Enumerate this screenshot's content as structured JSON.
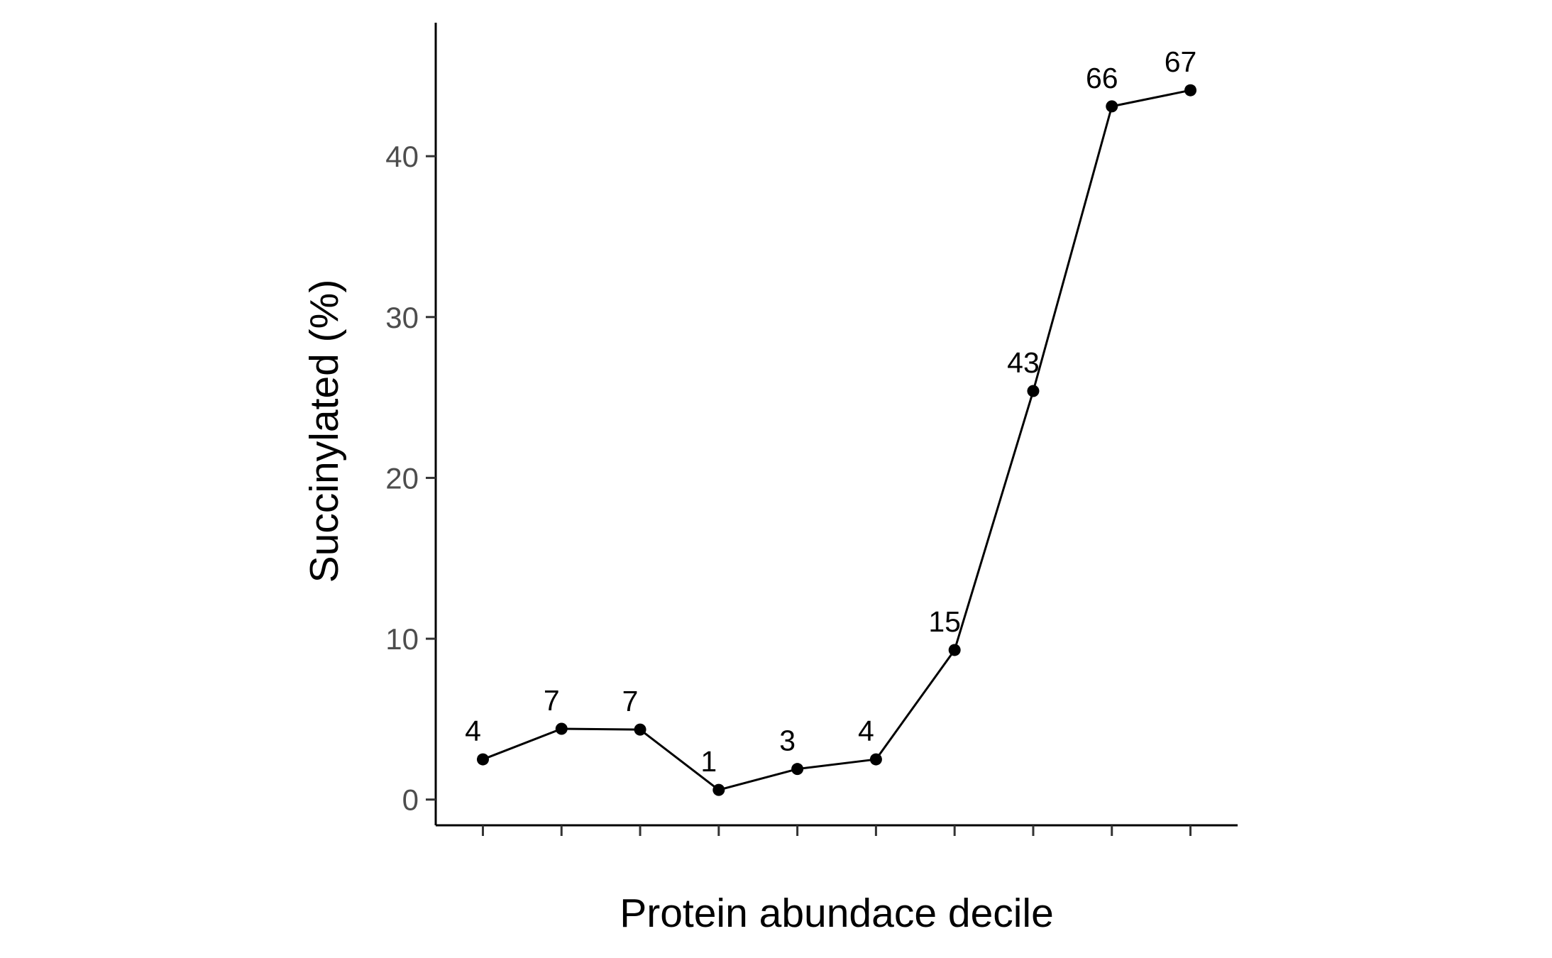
{
  "chart_data": {
    "type": "line",
    "xlabel": "Protein abundace decile",
    "ylabel": "Succinylated (%)",
    "x": [
      1,
      2,
      3,
      4,
      5,
      6,
      7,
      8,
      9,
      10
    ],
    "values": [
      2.5,
      4.4,
      4.35,
      0.6,
      1.9,
      2.5,
      9.3,
      25.4,
      43.1,
      44.1
    ],
    "point_labels": [
      "4",
      "7",
      "7",
      "1",
      "3",
      "4",
      "15",
      "43",
      "66",
      "67"
    ],
    "xlim": [
      0.4,
      10.6
    ],
    "ylim": [
      -1.6,
      48.3
    ],
    "y_ticks": [
      0,
      10,
      20,
      30,
      40
    ],
    "x_tick_labels": [],
    "grid": false,
    "legend": "none",
    "colors": {
      "line": "#000000",
      "points": "#000000",
      "axis": "#000000",
      "tick_text": "#4d4d4d"
    }
  }
}
